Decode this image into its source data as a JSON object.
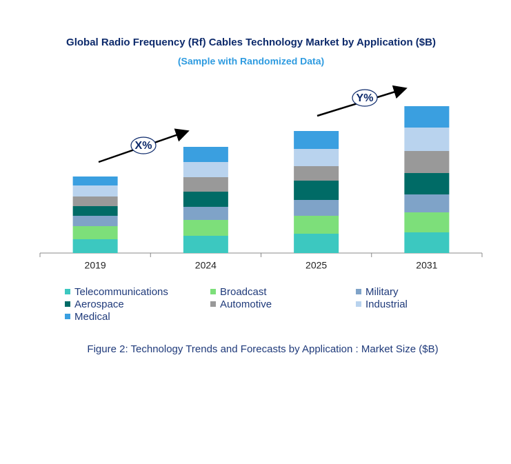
{
  "chart_data": {
    "type": "stacked_bar",
    "title": "Global Radio Frequency (Rf) Cables Technology Market by Application ($B)",
    "subtitle": "(Sample with Randomized Data)",
    "caption": "Figure 2: Technology  Trends  and Forecasts by Application : Market Size ($B)",
    "annotations": [
      "X%",
      "Y%"
    ],
    "categories": [
      "2019",
      "2024",
      "2025",
      "2031"
    ],
    "series": [
      {
        "name": "Telecommunications",
        "color": "#3cc8c0",
        "values": [
          20,
          25,
          28,
          30
        ]
      },
      {
        "name": "Broadcast",
        "color": "#7ddf7a",
        "values": [
          19,
          23,
          26,
          29
        ]
      },
      {
        "name": "Military",
        "color": "#7fa3c8",
        "values": [
          15,
          19,
          23,
          26
        ]
      },
      {
        "name": "Aerospace",
        "color": "#006b66",
        "values": [
          14,
          22,
          28,
          31
        ]
      },
      {
        "name": "Automotive",
        "color": "#999999",
        "values": [
          14,
          21,
          21,
          32
        ]
      },
      {
        "name": "Industrial",
        "color": "#b9d3ee",
        "values": [
          16,
          22,
          25,
          34
        ]
      },
      {
        "name": "Medical",
        "color": "#3a9fe0",
        "values": [
          13,
          22,
          26,
          31
        ]
      }
    ]
  }
}
